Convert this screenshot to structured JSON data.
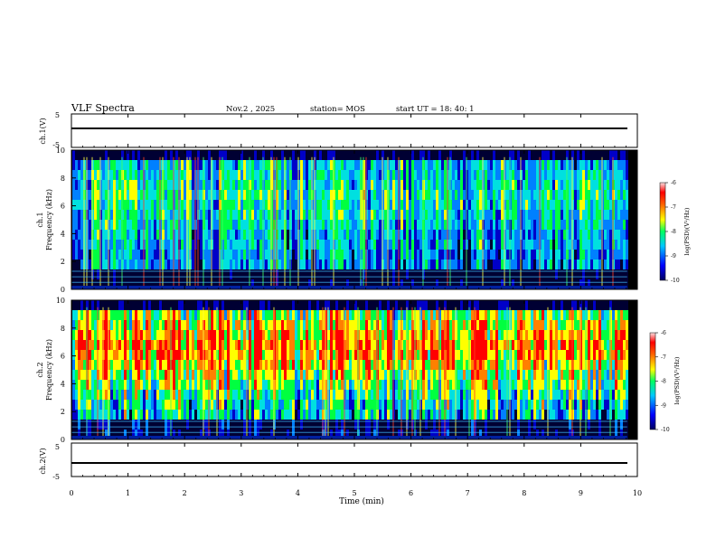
{
  "header": {
    "title": "VLF Spectra",
    "date": "Nov.2 , 2025",
    "station": "station= MOS",
    "start": "start UT = 18: 40: 1"
  },
  "chart_data": [
    {
      "type": "line",
      "panel": "ch1-waveform",
      "ylabel": "ch.1(V)",
      "ylim": [
        -5,
        5
      ],
      "yticks": [
        "5",
        "-5"
      ],
      "x": [
        0,
        9.82
      ],
      "series": [
        {
          "values": [
            0,
            0
          ]
        }
      ]
    },
    {
      "type": "heatmap",
      "panel": "ch1-spectrogram",
      "ylabel": "ch.1\nFrequency (kHz)",
      "ylim": [
        0,
        10
      ],
      "yticks": [
        "0",
        "2",
        "4",
        "6",
        "8",
        "10"
      ],
      "xlim": [
        0,
        9.82
      ],
      "colorbar": {
        "label": "log(PSD)(V²/Hz)",
        "range": [
          -10,
          -6
        ],
        "ticks": [
          "-6",
          "-7",
          "-8",
          "-9",
          "-10"
        ]
      }
    },
    {
      "type": "heatmap",
      "panel": "ch2-spectrogram",
      "ylabel": "ch.2\nFrequency (kHz)",
      "ylim": [
        0,
        10
      ],
      "yticks": [
        "0",
        "2",
        "4",
        "6",
        "8",
        "10"
      ],
      "xlim": [
        0,
        9.82
      ],
      "colorbar": {
        "label": "log(PSD)(V²/Hz)",
        "range": [
          -10,
          -6
        ],
        "ticks": [
          "-6",
          "-7",
          "-8",
          "-9",
          "-10"
        ]
      }
    },
    {
      "type": "line",
      "panel": "ch2-waveform",
      "ylabel": "ch.2(V)",
      "ylim": [
        -5,
        5
      ],
      "yticks": [
        "5",
        "-5"
      ],
      "x": [
        0,
        9.82
      ],
      "series": [
        {
          "values": [
            0,
            0
          ]
        }
      ]
    }
  ],
  "x_axis": {
    "label": "Time (min)",
    "range": [
      0,
      10
    ],
    "ticks": [
      "0",
      "1",
      "2",
      "3",
      "4",
      "5",
      "6",
      "7",
      "8",
      "9",
      "10"
    ]
  },
  "colors": {
    "spectrum_background": "#000000",
    "palette": [
      "#000033",
      "#0000c8",
      "#0080ff",
      "#00e0e0",
      "#00ff40",
      "#ffff00",
      "#ff8000",
      "#ff0000",
      "#ffd0d0"
    ]
  }
}
